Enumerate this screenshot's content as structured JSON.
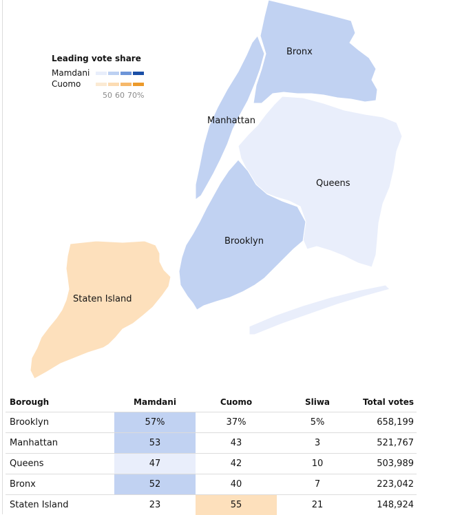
{
  "legend": {
    "title": "Leading vote share",
    "mamdani_label": "Mamdani",
    "cuomo_label": "Cuomo",
    "ticks": [
      "50",
      "60",
      "70%"
    ],
    "mamdani_colors": [
      "#e8eefb",
      "#bcd0f2",
      "#6d95d8",
      "#1a4fa6"
    ],
    "cuomo_colors": [
      "#fbead3",
      "#fcdcb3",
      "#f6b86a",
      "#ec9a2b"
    ]
  },
  "map": {
    "labels": {
      "bronx": "Bronx",
      "manhattan": "Manhattan",
      "queens": "Queens",
      "brooklyn": "Brooklyn",
      "staten_island": "Staten Island"
    },
    "fills": {
      "bronx": "#c1d2f2",
      "manhattan": "#c1d2f2",
      "queens": "#e9eefb",
      "brooklyn": "#c1d2f2",
      "staten_island": "#fde0bc"
    }
  },
  "table": {
    "headers": {
      "borough": "Borough",
      "mamdani": "Mamdani",
      "cuomo": "Cuomo",
      "sliwa": "Sliwa",
      "total": "Total votes"
    },
    "rows": [
      {
        "borough": "Brooklyn",
        "mamdani": "57%",
        "cuomo": "37%",
        "sliwa": "5%",
        "total": "658,199",
        "leader": "mamdani",
        "leader_color": "#c1d2f2"
      },
      {
        "borough": "Manhattan",
        "mamdani": "53",
        "cuomo": "43",
        "sliwa": "3",
        "total": "521,767",
        "leader": "mamdani",
        "leader_color": "#c1d2f2"
      },
      {
        "borough": "Queens",
        "mamdani": "47",
        "cuomo": "42",
        "sliwa": "10",
        "total": "503,989",
        "leader": "mamdani",
        "leader_color": "#e9eefb"
      },
      {
        "borough": "Bronx",
        "mamdani": "52",
        "cuomo": "40",
        "sliwa": "7",
        "total": "223,042",
        "leader": "mamdani",
        "leader_color": "#c1d2f2"
      },
      {
        "borough": "Staten Island",
        "mamdani": "23",
        "cuomo": "55",
        "sliwa": "21",
        "total": "148,924",
        "leader": "cuomo",
        "leader_color": "#fde0bc"
      }
    ]
  }
}
